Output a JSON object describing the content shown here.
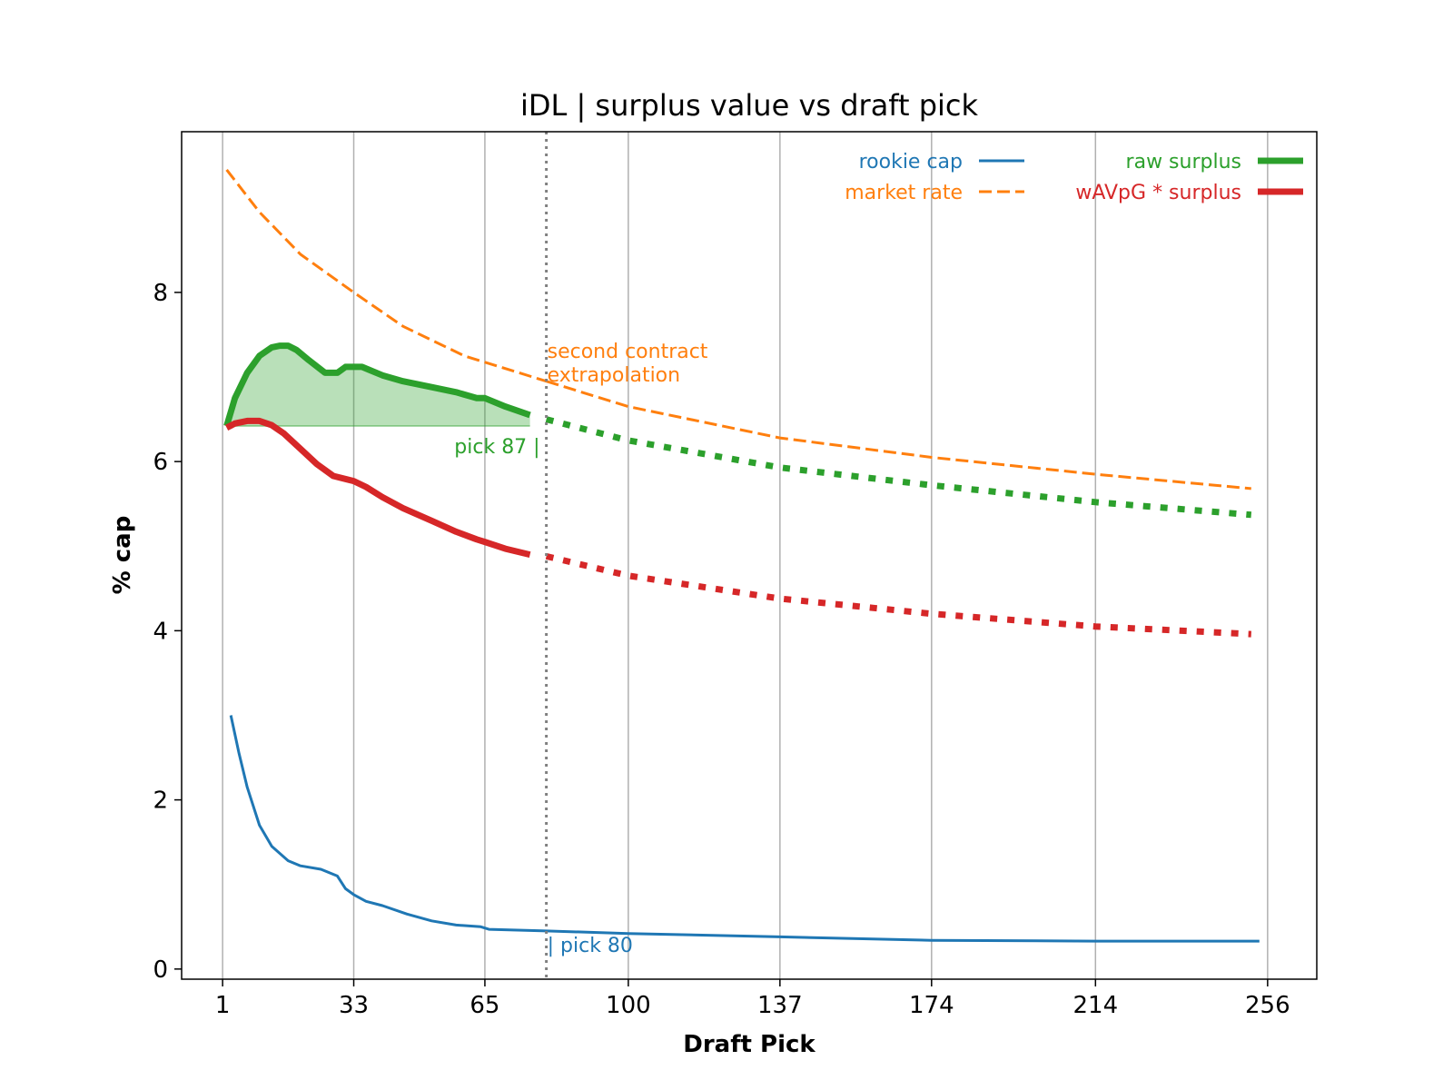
{
  "chart_data": {
    "type": "line",
    "title": "iDL | surplus value vs draft pick",
    "xlabel": "Draft Pick",
    "ylabel": "% cap",
    "xlim": [
      -9,
      268
    ],
    "ylim": [
      -0.12,
      9.9
    ],
    "x_ticks": [
      1,
      33,
      65,
      100,
      137,
      174,
      214,
      256
    ],
    "y_ticks": [
      0,
      2,
      4,
      6,
      8
    ],
    "grid": "vertical",
    "legend_placement": "top-right",
    "legend": [
      {
        "label": "rookie cap",
        "color": "#1f77b4",
        "style": "solid"
      },
      {
        "label": "market rate",
        "color": "#ff7f0e",
        "style": "dashed"
      },
      {
        "label": "raw surplus",
        "color": "#2ca02c",
        "style": "thick"
      },
      {
        "label": "wAVpG * surplus",
        "color": "#d62728",
        "style": "thick"
      }
    ],
    "cutoff": {
      "x": 80,
      "style": "dotted",
      "color": "#808080"
    },
    "annotations": [
      {
        "text": "second contract\nextrapolation",
        "x": 80,
        "y": 7.15,
        "color": "#ff7f0e"
      },
      {
        "text": "pick 87 |",
        "x": 78,
        "y": 6.25,
        "color": "#2ca02c"
      },
      {
        "text": "| pick 80",
        "x": 80,
        "y": 0.3,
        "color": "#1f77b4"
      }
    ],
    "series": [
      {
        "name": "rookie cap",
        "color": "#1f77b4",
        "x": [
          3,
          5,
          7,
          10,
          13,
          17,
          20,
          25,
          29,
          31,
          33,
          36,
          40,
          46,
          52,
          58,
          64,
          66,
          80,
          100,
          137,
          174,
          214,
          254
        ],
        "y": [
          3.0,
          2.55,
          2.15,
          1.7,
          1.45,
          1.28,
          1.22,
          1.18,
          1.1,
          0.95,
          0.88,
          0.8,
          0.75,
          0.65,
          0.57,
          0.52,
          0.5,
          0.47,
          0.45,
          0.42,
          0.38,
          0.34,
          0.33,
          0.33
        ]
      },
      {
        "name": "market rate",
        "color": "#ff7f0e",
        "x": [
          2,
          10,
          20,
          33,
          45,
          60,
          80
        ],
        "y": [
          9.45,
          8.95,
          8.45,
          8.0,
          7.6,
          7.25,
          6.95
        ],
        "extrapolated": {
          "x": [
            80,
            100,
            137,
            174,
            214,
            252
          ],
          "y": [
            6.95,
            6.65,
            6.28,
            6.05,
            5.85,
            5.68
          ]
        }
      },
      {
        "name": "raw surplus",
        "color": "#2ca02c",
        "baseline": 6.42,
        "x": [
          2,
          4,
          7,
          10,
          13,
          15,
          17,
          19,
          22,
          26,
          29,
          31,
          33,
          35,
          37,
          40,
          45,
          52,
          58,
          63,
          65,
          70,
          76
        ],
        "y": [
          6.42,
          6.75,
          7.05,
          7.25,
          7.35,
          7.37,
          7.37,
          7.32,
          7.2,
          7.05,
          7.05,
          7.12,
          7.12,
          7.12,
          7.08,
          7.02,
          6.95,
          6.88,
          6.82,
          6.75,
          6.75,
          6.65,
          6.55
        ],
        "extrapolated": {
          "x": [
            80,
            100,
            137,
            174,
            214,
            252
          ],
          "y": [
            6.5,
            6.25,
            5.93,
            5.72,
            5.52,
            5.37
          ]
        }
      },
      {
        "name": "wAVpG * surplus",
        "color": "#d62728",
        "x": [
          2,
          4,
          7,
          10,
          13,
          16,
          20,
          24,
          28,
          33,
          36,
          40,
          45,
          52,
          58,
          63,
          65,
          70,
          76
        ],
        "y": [
          6.4,
          6.45,
          6.48,
          6.48,
          6.43,
          6.33,
          6.15,
          5.97,
          5.83,
          5.77,
          5.7,
          5.58,
          5.45,
          5.3,
          5.17,
          5.08,
          5.05,
          4.97,
          4.9
        ],
        "extrapolated": {
          "x": [
            80,
            100,
            137,
            174,
            214,
            252
          ],
          "y": [
            4.88,
            4.65,
            4.38,
            4.2,
            4.05,
            3.96
          ]
        }
      }
    ]
  }
}
